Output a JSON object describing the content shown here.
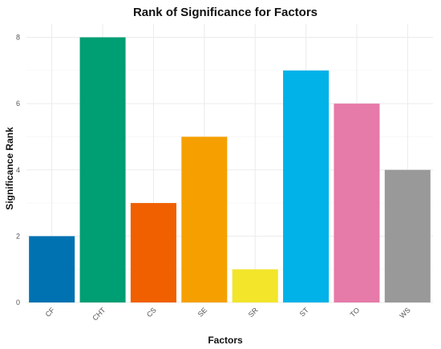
{
  "chart_data": {
    "type": "bar",
    "title": "Rank of Significance for Factors",
    "xlabel": "Factors",
    "ylabel": "Significance Rank",
    "categories": [
      "CF",
      "CHT",
      "CS",
      "SE",
      "SR",
      "ST",
      "TO",
      "WS"
    ],
    "values": [
      2,
      8,
      3,
      5,
      1,
      7,
      6,
      4
    ],
    "colors": [
      "#0072b2",
      "#009e73",
      "#f06000",
      "#f5a000",
      "#f2e52a",
      "#00b2e8",
      "#e67aa8",
      "#999999"
    ],
    "yticks": [
      0,
      2,
      4,
      6,
      8
    ],
    "ylim": [
      0,
      8.4
    ],
    "grid": true,
    "legend": "none"
  }
}
